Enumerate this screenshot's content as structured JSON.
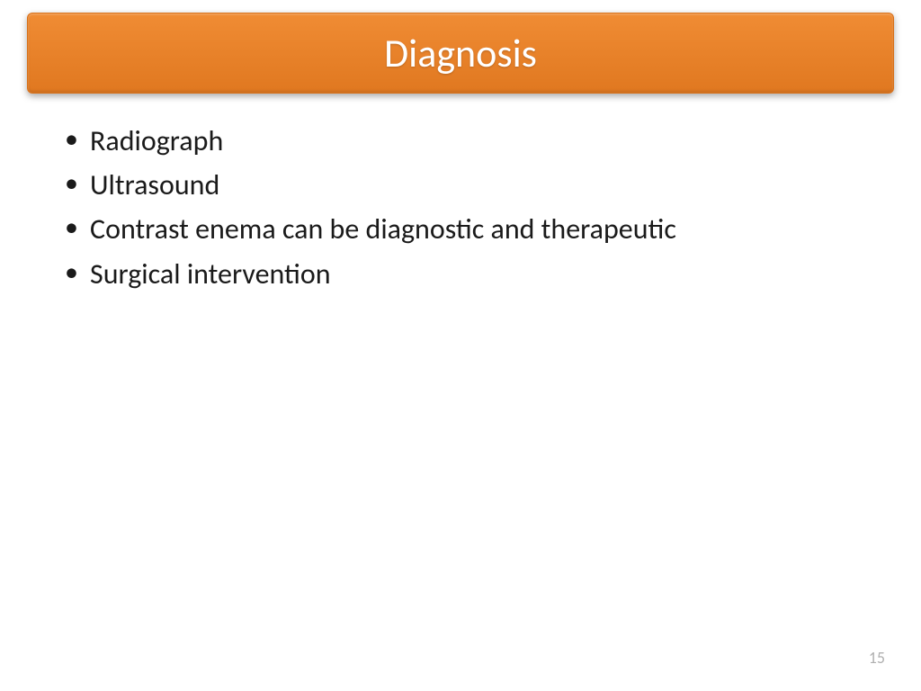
{
  "slide": {
    "title": "Diagnosis",
    "bullets": [
      "Radiograph",
      "Ultrasound",
      "Contrast enema can be diagnostic and therapeutic",
      "Surgical intervention"
    ],
    "page_number": "15",
    "styling": {
      "title_bar_gradient_start": "#f08c34",
      "title_bar_gradient_end": "#e07820",
      "title_text_color": "#ffffff",
      "title_fontsize": 44,
      "body_text_color": "#1a1a1a",
      "body_fontsize": 32,
      "page_number_color": "#b0b0b0",
      "page_number_fontsize": 18,
      "background_color": "#ffffff",
      "font_family": "Calibri"
    }
  }
}
